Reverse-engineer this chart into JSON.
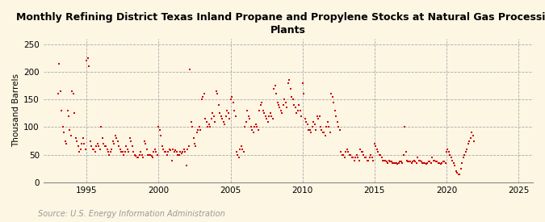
{
  "title": "Monthly Refining District Texas Inland Propane and Propylene Stocks at Natural Gas Processing\nPlants",
  "ylabel": "Thousand Barrels",
  "source": "Source: U.S. Energy Information Administration",
  "background_color": "#fdf6e3",
  "marker_color": "#cc0000",
  "marker": "s",
  "marker_size": 4,
  "xlim": [
    1992.0,
    2026.0
  ],
  "ylim": [
    0,
    260
  ],
  "yticks": [
    0,
    50,
    100,
    150,
    200,
    250
  ],
  "xticks": [
    1995,
    2000,
    2005,
    2010,
    2015,
    2020,
    2025
  ],
  "grid_color": "#aaaaaa",
  "data": [
    [
      1993.0,
      160
    ],
    [
      1993.083,
      215
    ],
    [
      1993.167,
      165
    ],
    [
      1993.25,
      130
    ],
    [
      1993.333,
      100
    ],
    [
      1993.417,
      90
    ],
    [
      1993.5,
      75
    ],
    [
      1993.583,
      70
    ],
    [
      1993.667,
      130
    ],
    [
      1993.75,
      120
    ],
    [
      1993.833,
      95
    ],
    [
      1993.917,
      85
    ],
    [
      1994.0,
      165
    ],
    [
      1994.083,
      160
    ],
    [
      1994.167,
      125
    ],
    [
      1994.25,
      80
    ],
    [
      1994.333,
      75
    ],
    [
      1994.417,
      65
    ],
    [
      1994.5,
      55
    ],
    [
      1994.583,
      60
    ],
    [
      1994.667,
      70
    ],
    [
      1994.75,
      80
    ],
    [
      1994.833,
      70
    ],
    [
      1994.917,
      60
    ],
    [
      1995.0,
      220
    ],
    [
      1995.083,
      225
    ],
    [
      1995.167,
      210
    ],
    [
      1995.25,
      75
    ],
    [
      1995.333,
      65
    ],
    [
      1995.417,
      60
    ],
    [
      1995.5,
      60
    ],
    [
      1995.583,
      55
    ],
    [
      1995.667,
      65
    ],
    [
      1995.75,
      70
    ],
    [
      1995.833,
      65
    ],
    [
      1995.917,
      60
    ],
    [
      1996.0,
      100
    ],
    [
      1996.083,
      80
    ],
    [
      1996.167,
      70
    ],
    [
      1996.25,
      65
    ],
    [
      1996.333,
      65
    ],
    [
      1996.417,
      60
    ],
    [
      1996.5,
      55
    ],
    [
      1996.583,
      50
    ],
    [
      1996.667,
      55
    ],
    [
      1996.75,
      60
    ],
    [
      1996.833,
      75
    ],
    [
      1996.917,
      70
    ],
    [
      1997.0,
      85
    ],
    [
      1997.083,
      80
    ],
    [
      1997.167,
      75
    ],
    [
      1997.25,
      65
    ],
    [
      1997.333,
      60
    ],
    [
      1997.417,
      55
    ],
    [
      1997.5,
      55
    ],
    [
      1997.583,
      50
    ],
    [
      1997.667,
      55
    ],
    [
      1997.75,
      65
    ],
    [
      1997.833,
      60
    ],
    [
      1997.917,
      55
    ],
    [
      1998.0,
      80
    ],
    [
      1998.083,
      75
    ],
    [
      1998.167,
      65
    ],
    [
      1998.25,
      55
    ],
    [
      1998.333,
      50
    ],
    [
      1998.417,
      48
    ],
    [
      1998.5,
      45
    ],
    [
      1998.583,
      45
    ],
    [
      1998.667,
      50
    ],
    [
      1998.75,
      55
    ],
    [
      1998.833,
      50
    ],
    [
      1998.917,
      45
    ],
    [
      1999.0,
      75
    ],
    [
      1999.083,
      70
    ],
    [
      1999.167,
      60
    ],
    [
      1999.25,
      50
    ],
    [
      1999.333,
      50
    ],
    [
      1999.417,
      50
    ],
    [
      1999.5,
      48
    ],
    [
      1999.583,
      45
    ],
    [
      1999.667,
      55
    ],
    [
      1999.75,
      60
    ],
    [
      1999.833,
      55
    ],
    [
      1999.917,
      50
    ],
    [
      2000.0,
      100
    ],
    [
      2000.083,
      95
    ],
    [
      2000.167,
      85
    ],
    [
      2000.25,
      65
    ],
    [
      2000.333,
      60
    ],
    [
      2000.417,
      55
    ],
    [
      2000.5,
      55
    ],
    [
      2000.583,
      50
    ],
    [
      2000.667,
      55
    ],
    [
      2000.75,
      60
    ],
    [
      2000.833,
      58
    ],
    [
      2000.917,
      40
    ],
    [
      2001.0,
      60
    ],
    [
      2001.083,
      55
    ],
    [
      2001.167,
      58
    ],
    [
      2001.25,
      55
    ],
    [
      2001.333,
      50
    ],
    [
      2001.417,
      50
    ],
    [
      2001.5,
      55
    ],
    [
      2001.583,
      52
    ],
    [
      2001.667,
      55
    ],
    [
      2001.75,
      60
    ],
    [
      2001.833,
      55
    ],
    [
      2001.917,
      30
    ],
    [
      2002.0,
      60
    ],
    [
      2002.083,
      65
    ],
    [
      2002.167,
      205
    ],
    [
      2002.25,
      110
    ],
    [
      2002.333,
      100
    ],
    [
      2002.417,
      80
    ],
    [
      2002.5,
      70
    ],
    [
      2002.583,
      65
    ],
    [
      2002.667,
      90
    ],
    [
      2002.75,
      95
    ],
    [
      2002.833,
      100
    ],
    [
      2002.917,
      95
    ],
    [
      2003.0,
      150
    ],
    [
      2003.083,
      155
    ],
    [
      2003.167,
      160
    ],
    [
      2003.25,
      115
    ],
    [
      2003.333,
      110
    ],
    [
      2003.417,
      100
    ],
    [
      2003.5,
      105
    ],
    [
      2003.583,
      100
    ],
    [
      2003.667,
      115
    ],
    [
      2003.75,
      125
    ],
    [
      2003.833,
      120
    ],
    [
      2003.917,
      110
    ],
    [
      2004.0,
      165
    ],
    [
      2004.083,
      160
    ],
    [
      2004.167,
      140
    ],
    [
      2004.25,
      125
    ],
    [
      2004.333,
      120
    ],
    [
      2004.417,
      115
    ],
    [
      2004.5,
      110
    ],
    [
      2004.583,
      105
    ],
    [
      2004.667,
      120
    ],
    [
      2004.75,
      130
    ],
    [
      2004.833,
      125
    ],
    [
      2004.917,
      115
    ],
    [
      2005.0,
      150
    ],
    [
      2005.083,
      155
    ],
    [
      2005.167,
      145
    ],
    [
      2005.25,
      130
    ],
    [
      2005.333,
      120
    ],
    [
      2005.417,
      55
    ],
    [
      2005.5,
      50
    ],
    [
      2005.583,
      45
    ],
    [
      2005.667,
      60
    ],
    [
      2005.75,
      65
    ],
    [
      2005.833,
      60
    ],
    [
      2005.917,
      55
    ],
    [
      2006.0,
      100
    ],
    [
      2006.083,
      110
    ],
    [
      2006.167,
      130
    ],
    [
      2006.25,
      120
    ],
    [
      2006.333,
      115
    ],
    [
      2006.417,
      100
    ],
    [
      2006.5,
      95
    ],
    [
      2006.583,
      90
    ],
    [
      2006.667,
      100
    ],
    [
      2006.75,
      105
    ],
    [
      2006.833,
      100
    ],
    [
      2006.917,
      95
    ],
    [
      2007.0,
      130
    ],
    [
      2007.083,
      140
    ],
    [
      2007.167,
      145
    ],
    [
      2007.25,
      130
    ],
    [
      2007.333,
      125
    ],
    [
      2007.417,
      120
    ],
    [
      2007.5,
      115
    ],
    [
      2007.583,
      110
    ],
    [
      2007.667,
      120
    ],
    [
      2007.75,
      125
    ],
    [
      2007.833,
      120
    ],
    [
      2007.917,
      115
    ],
    [
      2008.0,
      170
    ],
    [
      2008.083,
      175
    ],
    [
      2008.167,
      160
    ],
    [
      2008.25,
      145
    ],
    [
      2008.333,
      140
    ],
    [
      2008.417,
      135
    ],
    [
      2008.5,
      130
    ],
    [
      2008.583,
      125
    ],
    [
      2008.667,
      140
    ],
    [
      2008.75,
      150
    ],
    [
      2008.833,
      145
    ],
    [
      2008.917,
      135
    ],
    [
      2009.0,
      180
    ],
    [
      2009.083,
      185
    ],
    [
      2009.167,
      170
    ],
    [
      2009.25,
      155
    ],
    [
      2009.333,
      150
    ],
    [
      2009.417,
      140
    ],
    [
      2009.5,
      135
    ],
    [
      2009.583,
      125
    ],
    [
      2009.667,
      130
    ],
    [
      2009.75,
      140
    ],
    [
      2009.833,
      130
    ],
    [
      2009.917,
      120
    ],
    [
      2010.0,
      180
    ],
    [
      2010.083,
      160
    ],
    [
      2010.167,
      115
    ],
    [
      2010.25,
      110
    ],
    [
      2010.333,
      105
    ],
    [
      2010.417,
      95
    ],
    [
      2010.5,
      95
    ],
    [
      2010.583,
      90
    ],
    [
      2010.667,
      100
    ],
    [
      2010.75,
      110
    ],
    [
      2010.833,
      105
    ],
    [
      2010.917,
      95
    ],
    [
      2011.0,
      120
    ],
    [
      2011.083,
      115
    ],
    [
      2011.167,
      120
    ],
    [
      2011.25,
      100
    ],
    [
      2011.333,
      95
    ],
    [
      2011.417,
      90
    ],
    [
      2011.5,
      90
    ],
    [
      2011.583,
      85
    ],
    [
      2011.667,
      100
    ],
    [
      2011.75,
      110
    ],
    [
      2011.833,
      100
    ],
    [
      2011.917,
      90
    ],
    [
      2012.0,
      160
    ],
    [
      2012.083,
      155
    ],
    [
      2012.167,
      145
    ],
    [
      2012.25,
      130
    ],
    [
      2012.333,
      120
    ],
    [
      2012.417,
      110
    ],
    [
      2012.5,
      100
    ],
    [
      2012.583,
      95
    ],
    [
      2012.667,
      55
    ],
    [
      2012.75,
      50
    ],
    [
      2012.833,
      50
    ],
    [
      2012.917,
      45
    ],
    [
      2013.0,
      55
    ],
    [
      2013.083,
      60
    ],
    [
      2013.167,
      55
    ],
    [
      2013.25,
      50
    ],
    [
      2013.333,
      50
    ],
    [
      2013.417,
      45
    ],
    [
      2013.5,
      45
    ],
    [
      2013.583,
      40
    ],
    [
      2013.667,
      45
    ],
    [
      2013.75,
      50
    ],
    [
      2013.833,
      45
    ],
    [
      2013.917,
      40
    ],
    [
      2014.0,
      60
    ],
    [
      2014.083,
      55
    ],
    [
      2014.167,
      55
    ],
    [
      2014.25,
      50
    ],
    [
      2014.333,
      45
    ],
    [
      2014.417,
      45
    ],
    [
      2014.5,
      40
    ],
    [
      2014.583,
      40
    ],
    [
      2014.667,
      45
    ],
    [
      2014.75,
      50
    ],
    [
      2014.833,
      45
    ],
    [
      2014.917,
      40
    ],
    [
      2015.0,
      70
    ],
    [
      2015.083,
      65
    ],
    [
      2015.167,
      60
    ],
    [
      2015.25,
      55
    ],
    [
      2015.333,
      50
    ],
    [
      2015.417,
      50
    ],
    [
      2015.5,
      45
    ],
    [
      2015.583,
      40
    ],
    [
      2015.667,
      40
    ],
    [
      2015.75,
      40
    ],
    [
      2015.833,
      38
    ],
    [
      2015.917,
      35
    ],
    [
      2016.0,
      40
    ],
    [
      2016.083,
      38
    ],
    [
      2016.167,
      38
    ],
    [
      2016.25,
      35
    ],
    [
      2016.333,
      35
    ],
    [
      2016.417,
      35
    ],
    [
      2016.5,
      35
    ],
    [
      2016.583,
      33
    ],
    [
      2016.667,
      35
    ],
    [
      2016.75,
      38
    ],
    [
      2016.833,
      38
    ],
    [
      2016.917,
      35
    ],
    [
      2017.0,
      50
    ],
    [
      2017.083,
      100
    ],
    [
      2017.167,
      55
    ],
    [
      2017.25,
      40
    ],
    [
      2017.333,
      38
    ],
    [
      2017.417,
      38
    ],
    [
      2017.5,
      38
    ],
    [
      2017.583,
      35
    ],
    [
      2017.667,
      38
    ],
    [
      2017.75,
      40
    ],
    [
      2017.833,
      38
    ],
    [
      2017.917,
      35
    ],
    [
      2018.0,
      45
    ],
    [
      2018.083,
      40
    ],
    [
      2018.167,
      40
    ],
    [
      2018.25,
      38
    ],
    [
      2018.333,
      35
    ],
    [
      2018.417,
      35
    ],
    [
      2018.5,
      35
    ],
    [
      2018.583,
      33
    ],
    [
      2018.667,
      35
    ],
    [
      2018.75,
      38
    ],
    [
      2018.833,
      38
    ],
    [
      2018.917,
      35
    ],
    [
      2019.0,
      45
    ],
    [
      2019.083,
      40
    ],
    [
      2019.167,
      40
    ],
    [
      2019.25,
      38
    ],
    [
      2019.333,
      38
    ],
    [
      2019.417,
      35
    ],
    [
      2019.5,
      35
    ],
    [
      2019.583,
      33
    ],
    [
      2019.667,
      35
    ],
    [
      2019.75,
      38
    ],
    [
      2019.833,
      38
    ],
    [
      2019.917,
      35
    ],
    [
      2020.0,
      55
    ],
    [
      2020.083,
      60
    ],
    [
      2020.167,
      55
    ],
    [
      2020.25,
      50
    ],
    [
      2020.333,
      45
    ],
    [
      2020.417,
      40
    ],
    [
      2020.5,
      35
    ],
    [
      2020.583,
      30
    ],
    [
      2020.667,
      20
    ],
    [
      2020.75,
      18
    ],
    [
      2020.833,
      15
    ],
    [
      2020.917,
      15
    ],
    [
      2021.0,
      25
    ],
    [
      2021.083,
      35
    ],
    [
      2021.167,
      45
    ],
    [
      2021.25,
      50
    ],
    [
      2021.333,
      55
    ],
    [
      2021.417,
      60
    ],
    [
      2021.5,
      70
    ],
    [
      2021.583,
      75
    ],
    [
      2021.667,
      80
    ],
    [
      2021.75,
      90
    ],
    [
      2021.833,
      85
    ],
    [
      2021.917,
      75
    ]
  ]
}
